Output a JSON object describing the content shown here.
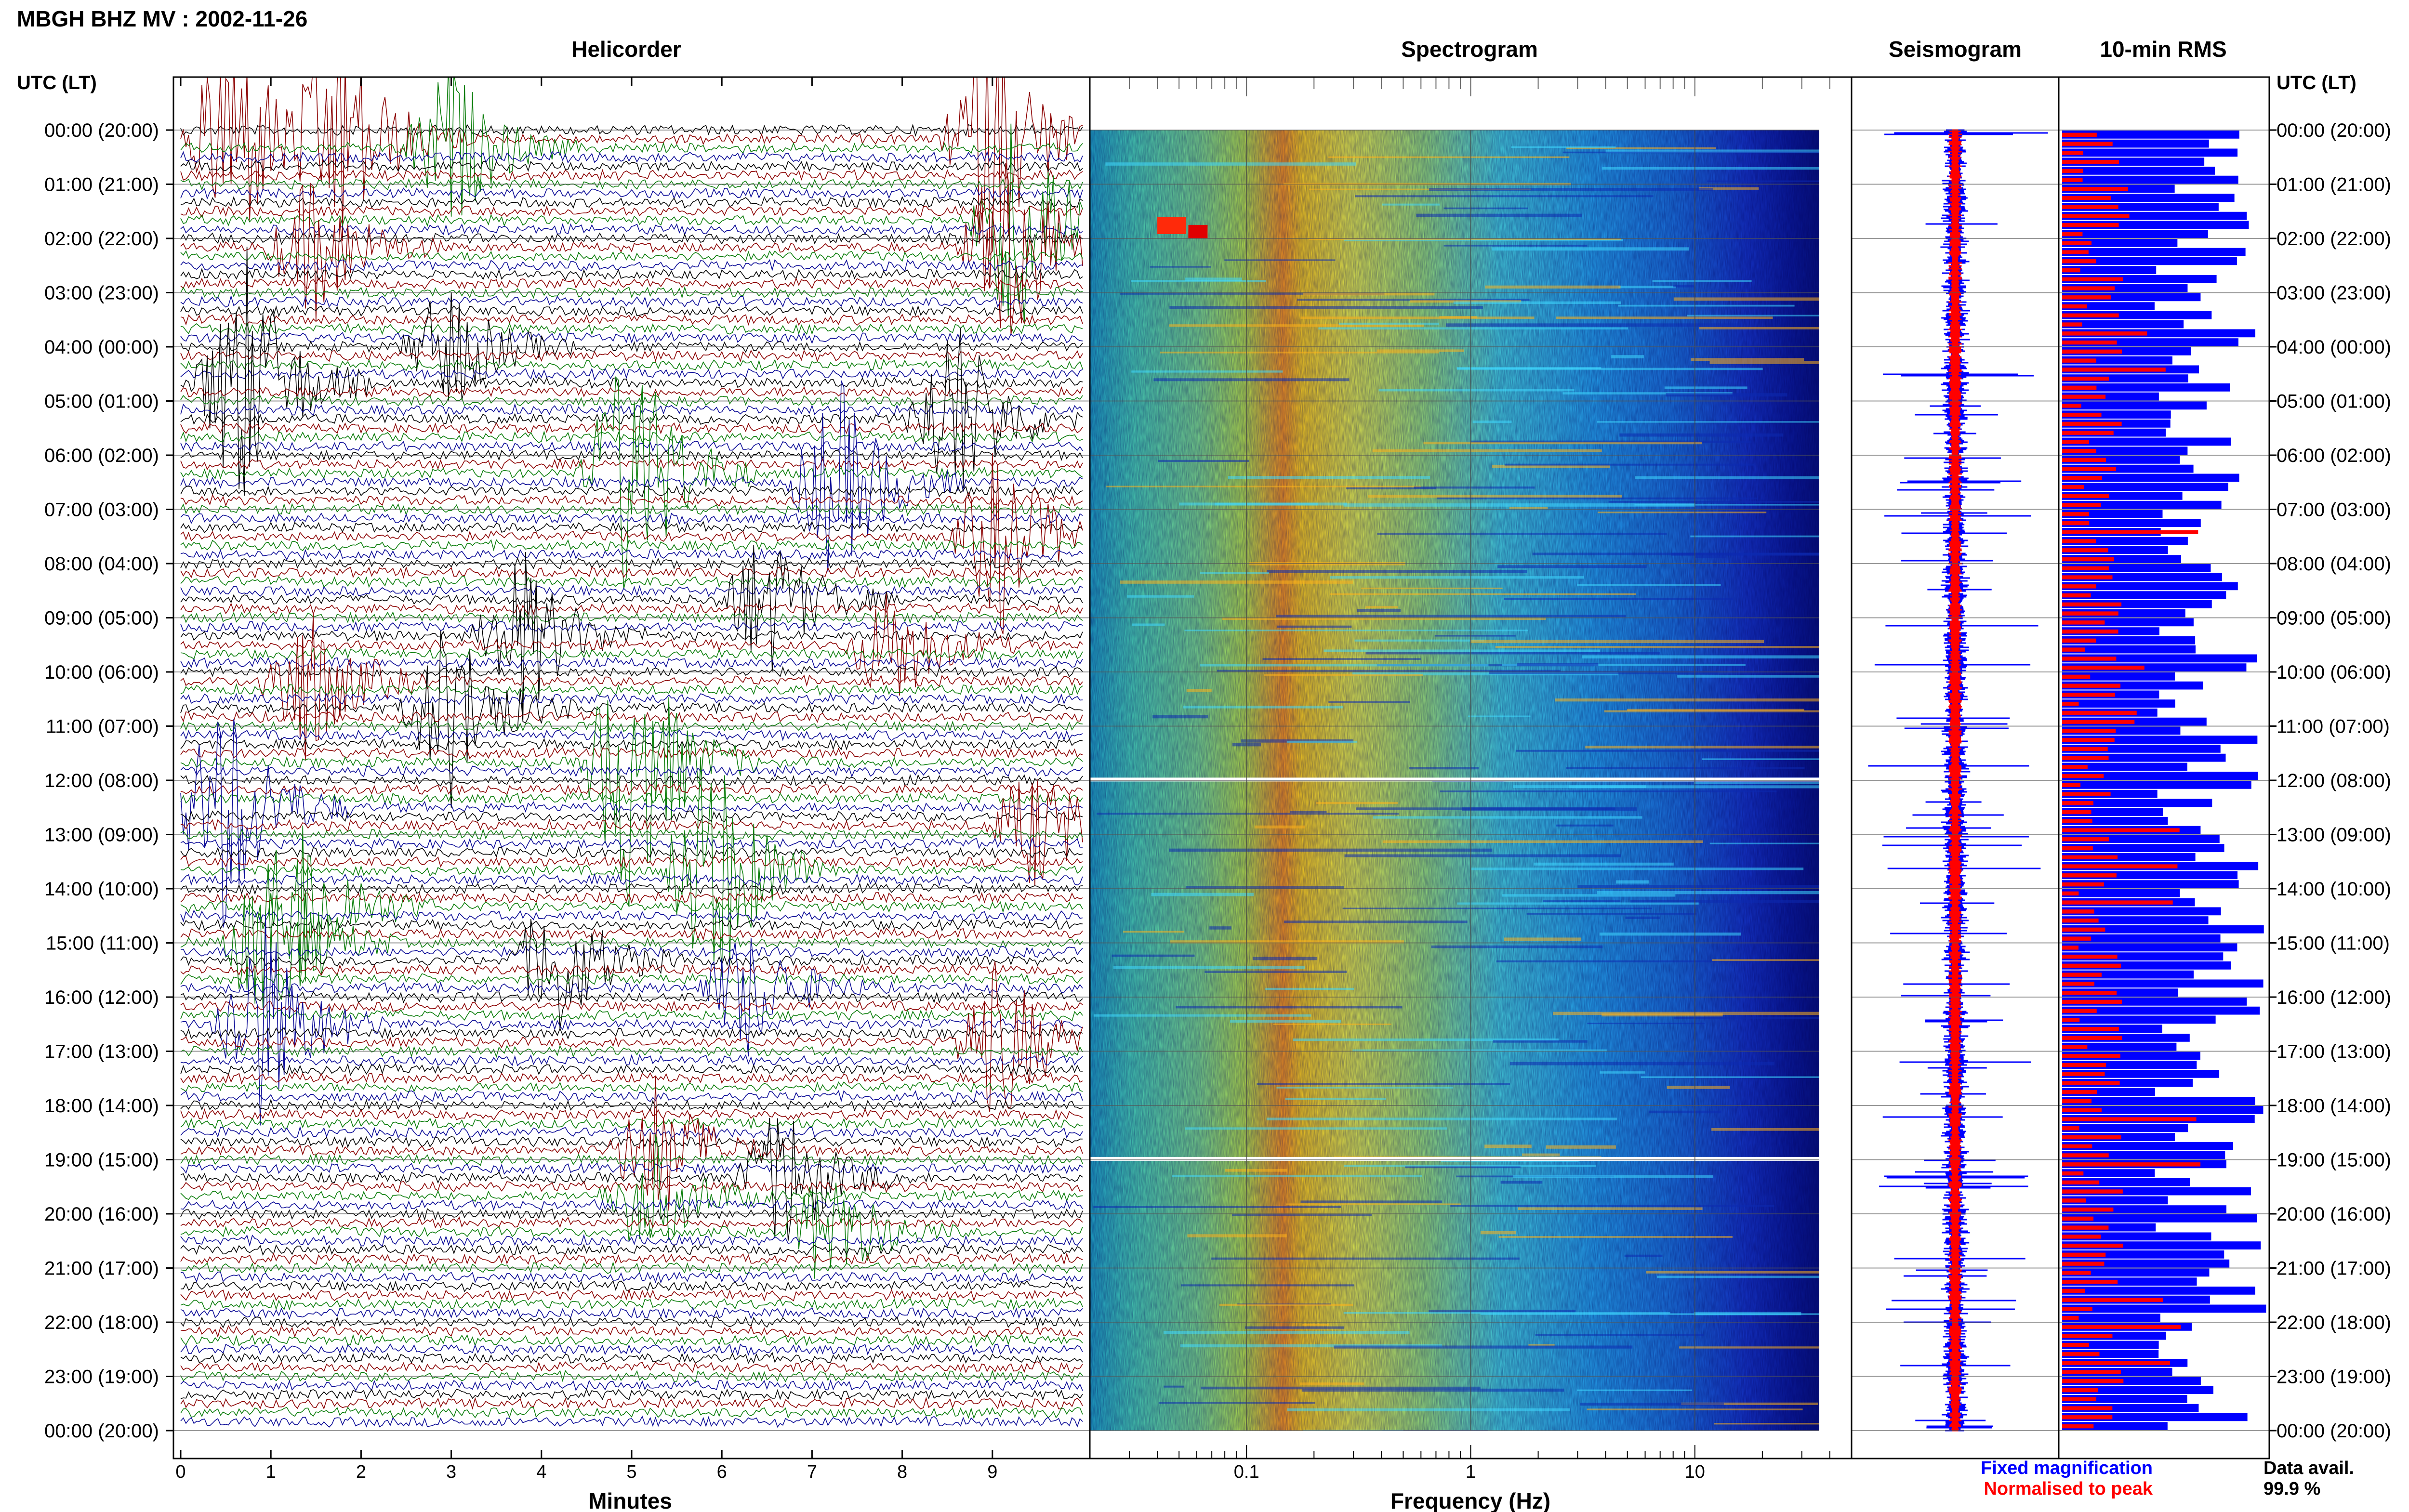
{
  "page_title": "MBGH BHZ MV : 2002-11-26",
  "axis_time_label": "UTC (LT)",
  "time_ticks": [
    "00:00 (20:00)",
    "01:00 (21:00)",
    "02:00 (22:00)",
    "03:00 (23:00)",
    "04:00 (00:00)",
    "05:00 (01:00)",
    "06:00 (02:00)",
    "07:00 (03:00)",
    "08:00 (04:00)",
    "09:00 (05:00)",
    "10:00 (06:00)",
    "11:00 (07:00)",
    "12:00 (08:00)",
    "13:00 (09:00)",
    "14:00 (10:00)",
    "15:00 (11:00)",
    "16:00 (12:00)",
    "17:00 (13:00)",
    "18:00 (14:00)",
    "19:00 (15:00)",
    "20:00 (16:00)",
    "21:00 (17:00)",
    "22:00 (18:00)",
    "23:00 (19:00)",
    "00:00 (20:00)"
  ],
  "legend": {
    "fixed": "Fixed magnification",
    "normalised": "Normalised to peak"
  },
  "data_avail": {
    "label": "Data avail.",
    "value": "99.9 %"
  },
  "colors": {
    "black": "#000000",
    "red": "#8b0000",
    "green": "#0a7d0a",
    "blue": "#0a0a96",
    "fixed": "#0000ff",
    "normalised": "#ff0000"
  },
  "chart_data": [
    {
      "type": "line",
      "title": "Helicorder",
      "xlabel": "Minutes",
      "x_ticks": [
        0,
        1,
        2,
        3,
        4,
        5,
        6,
        7,
        8,
        9
      ],
      "xlim": [
        0,
        10
      ],
      "trace_count": 144,
      "trace_colors": [
        "black",
        "red",
        "green",
        "blue"
      ],
      "events": [
        {
          "row": 1,
          "minute": 0.6,
          "amp": 2.6
        },
        {
          "row": 1,
          "minute": 1.8,
          "amp": 2.4
        },
        {
          "row": 2,
          "minute": 3.0,
          "amp": 1.8
        },
        {
          "row": 1,
          "minute": 9.0,
          "amp": 2.8
        },
        {
          "row": 10,
          "minute": 9.3,
          "amp": 2.6
        },
        {
          "row": 13,
          "minute": 1.5,
          "amp": 1.6
        },
        {
          "row": 13,
          "minute": 9.2,
          "amp": 2.4
        },
        {
          "row": 24,
          "minute": 3.0,
          "amp": 1.4
        },
        {
          "row": 28,
          "minute": 0.7,
          "amp": 3.0
        },
        {
          "row": 32,
          "minute": 8.6,
          "amp": 2.2
        },
        {
          "row": 38,
          "minute": 5.0,
          "amp": 3.0
        },
        {
          "row": 39,
          "minute": 7.3,
          "amp": 2.2
        },
        {
          "row": 45,
          "minute": 9.1,
          "amp": 2.0
        },
        {
          "row": 52,
          "minute": 6.5,
          "amp": 1.6
        },
        {
          "row": 56,
          "minute": 3.8,
          "amp": 1.8
        },
        {
          "row": 57,
          "minute": 7.9,
          "amp": 1.4
        },
        {
          "row": 61,
          "minute": 1.4,
          "amp": 1.8
        },
        {
          "row": 64,
          "minute": 3.0,
          "amp": 2.0
        },
        {
          "row": 70,
          "minute": 5.0,
          "amp": 3.2
        },
        {
          "row": 75,
          "minute": 0.5,
          "amp": 2.6
        },
        {
          "row": 77,
          "minute": 9.5,
          "amp": 1.4
        },
        {
          "row": 82,
          "minute": 5.9,
          "amp": 3.0
        },
        {
          "row": 86,
          "minute": 1.4,
          "amp": 2.0
        },
        {
          "row": 90,
          "minute": 1.0,
          "amp": 2.2
        },
        {
          "row": 92,
          "minute": 4.2,
          "amp": 1.6
        },
        {
          "row": 95,
          "minute": 6.3,
          "amp": 1.4
        },
        {
          "row": 99,
          "minute": 0.9,
          "amp": 2.4
        },
        {
          "row": 101,
          "minute": 9.1,
          "amp": 1.8
        },
        {
          "row": 113,
          "minute": 5.3,
          "amp": 1.6
        },
        {
          "row": 116,
          "minute": 6.7,
          "amp": 1.6
        },
        {
          "row": 118,
          "minute": 5.2,
          "amp": 1.4
        },
        {
          "row": 122,
          "minute": 7.2,
          "amp": 1.4
        }
      ]
    },
    {
      "type": "heatmap",
      "title": "Spectrogram",
      "xlabel": "Frequency (Hz)",
      "x_scale": "log",
      "xlim": [
        0.02,
        50
      ],
      "x_ticks": [
        0.1,
        1,
        10
      ],
      "x_tick_labels": [
        "0.1",
        "1",
        "10"
      ],
      "peak_frequency_hz": 0.22,
      "colormap": [
        "#00007f",
        "#0000ff",
        "#007fff",
        "#00ffff",
        "#7fff7f",
        "#ffff00",
        "#ff7f00",
        "#ff0000"
      ]
    },
    {
      "type": "line",
      "title": "Seismogram"
    },
    {
      "type": "bar",
      "title": "10-min RMS",
      "bar_count": 144,
      "series": [
        {
          "name": "Fixed magnification",
          "color": "#0000ff"
        },
        {
          "name": "Normalised to peak",
          "color": "#ff0000"
        }
      ]
    }
  ]
}
